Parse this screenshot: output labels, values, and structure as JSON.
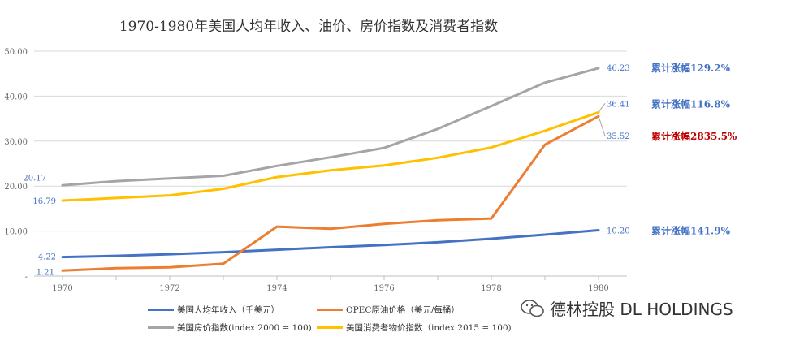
{
  "chart_data": {
    "type": "line",
    "title": "1970-1980年美国人均年收入、油价、房价指数及消费者指数",
    "xlabel": "",
    "ylabel": "",
    "x": [
      1970,
      1971,
      1972,
      1973,
      1974,
      1975,
      1976,
      1977,
      1978,
      1979,
      1980
    ],
    "x_tick_labels": [
      "1970",
      "1972",
      "1974",
      "1976",
      "1978",
      "1980"
    ],
    "x_tick_values": [
      1970,
      1972,
      1974,
      1976,
      1978,
      1980
    ],
    "ylim": [
      0,
      50
    ],
    "y_tick_labels": [
      "-",
      "10.00",
      "20.00",
      "30.00",
      "40.00",
      "50.00"
    ],
    "y_tick_values": [
      0,
      10,
      20,
      30,
      40,
      50
    ],
    "grid": "horizontal",
    "legend_position": "bottom",
    "series": [
      {
        "name": "美国人均年收入（千美元）",
        "color": "#4472C4",
        "values": [
          4.22,
          4.5,
          4.85,
          5.3,
          5.85,
          6.4,
          6.9,
          7.5,
          8.3,
          9.2,
          10.2
        ],
        "start_label": "4.22",
        "end_label": "10.20",
        "gain_label": "累计涨幅141.9%",
        "gain_color": "#4472C4"
      },
      {
        "name": "OPEC原油价格（美元/每桶）",
        "color": "#ED7D31",
        "values": [
          1.21,
          1.75,
          1.95,
          2.75,
          11.0,
          10.5,
          11.6,
          12.4,
          12.8,
          29.2,
          35.52
        ],
        "start_label": "1.21",
        "end_label": "35.52",
        "gain_label": "累计涨幅2835.5%",
        "gain_color": "#C00000"
      },
      {
        "name": "美国房价指数(index 2000 = 100)",
        "color": "#A5A5A5",
        "values": [
          20.17,
          21.1,
          21.7,
          22.3,
          24.5,
          26.4,
          28.5,
          32.7,
          37.8,
          43.0,
          46.23
        ],
        "start_label": "20.17",
        "end_label": "46.23",
        "gain_label": "累计涨幅129.2%",
        "gain_color": "#4472C4"
      },
      {
        "name": "美国消费者物价指数（index 2015 = 100)",
        "color": "#FFC000",
        "values": [
          16.79,
          17.35,
          17.95,
          19.4,
          22.0,
          23.5,
          24.6,
          26.3,
          28.6,
          32.3,
          36.41
        ],
        "start_label": "16.79",
        "end_label": "36.41",
        "gain_label": "累计涨幅116.8%",
        "gain_color": "#4472C4"
      }
    ]
  },
  "watermark": {
    "text": "德林控股 DL HOLDINGS",
    "icon": "wechat-icon"
  }
}
